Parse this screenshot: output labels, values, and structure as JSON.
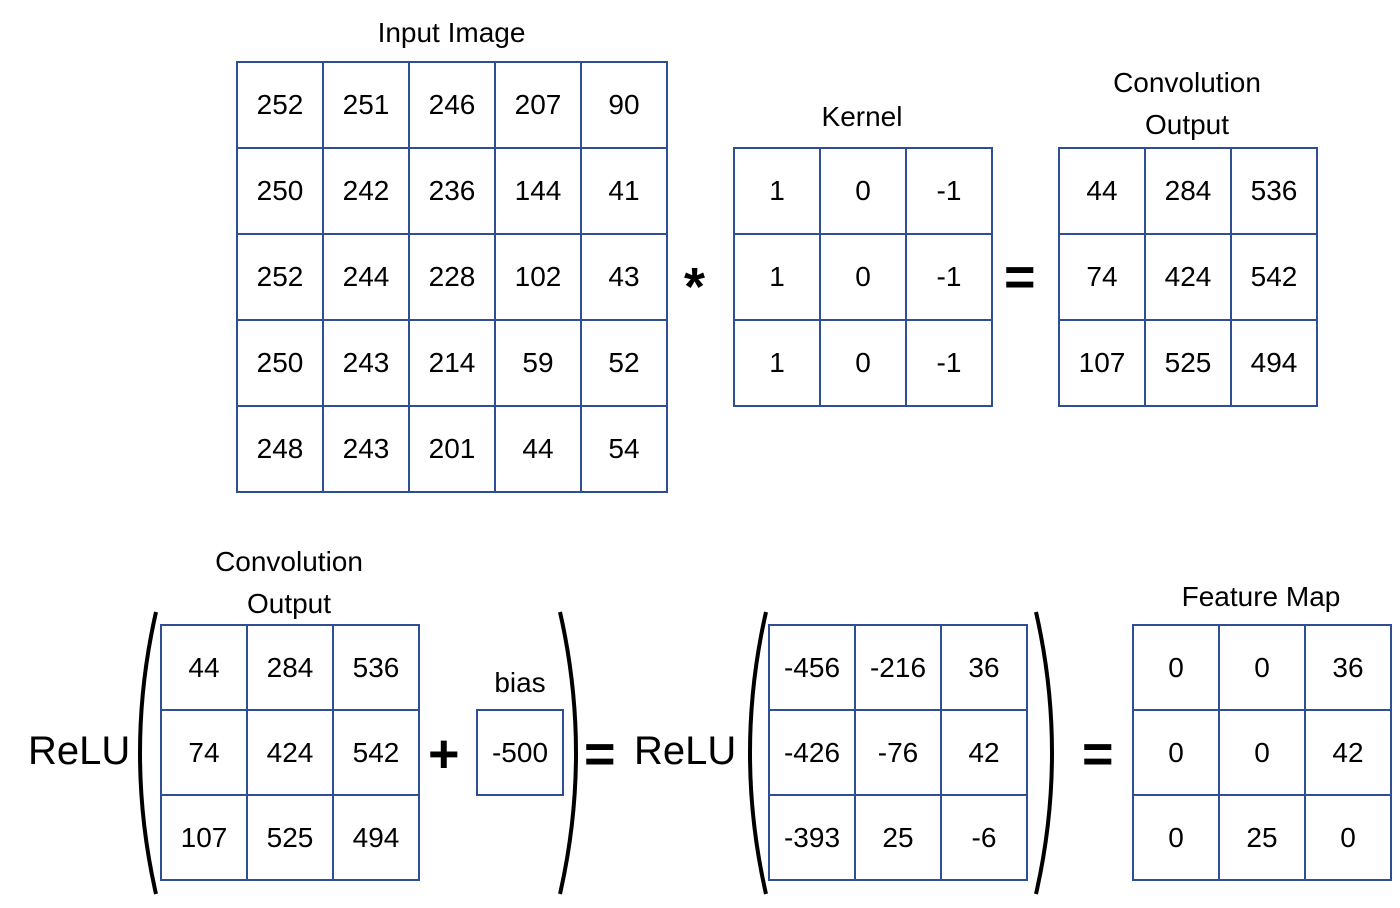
{
  "input_image": {
    "title": "Input Image",
    "rows": [
      [
        "252",
        "251",
        "246",
        "207",
        "90"
      ],
      [
        "250",
        "242",
        "236",
        "144",
        "41"
      ],
      [
        "252",
        "244",
        "228",
        "102",
        "43"
      ],
      [
        "250",
        "243",
        "214",
        "59",
        "52"
      ],
      [
        "248",
        "243",
        "201",
        "44",
        "54"
      ]
    ]
  },
  "operators": {
    "convolve": "*",
    "equals": "=",
    "plus": "+"
  },
  "kernel": {
    "title": "Kernel",
    "rows": [
      [
        "1",
        "0",
        "-1"
      ],
      [
        "1",
        "0",
        "-1"
      ],
      [
        "1",
        "0",
        "-1"
      ]
    ]
  },
  "conv_output_top": {
    "title_line1": "Convolution",
    "title_line2": "Output",
    "rows": [
      [
        "44",
        "284",
        "536"
      ],
      [
        "74",
        "424",
        "542"
      ],
      [
        "107",
        "525",
        "494"
      ]
    ]
  },
  "relu_label": "ReLU",
  "conv_output_bottom": {
    "title_line1": "Convolution",
    "title_line2": "Output",
    "rows": [
      [
        "44",
        "284",
        "536"
      ],
      [
        "74",
        "424",
        "542"
      ],
      [
        "107",
        "525",
        "494"
      ]
    ]
  },
  "bias": {
    "title": "bias",
    "value": "-500"
  },
  "sum_matrix": {
    "rows": [
      [
        "-456",
        "-216",
        "36"
      ],
      [
        "-426",
        "-76",
        "42"
      ],
      [
        "-393",
        "25",
        "-6"
      ]
    ]
  },
  "feature_map": {
    "title": "Feature Map",
    "rows": [
      [
        "0",
        "0",
        "36"
      ],
      [
        "0",
        "0",
        "42"
      ],
      [
        "0",
        "25",
        "0"
      ]
    ]
  },
  "colors": {
    "grid_border": "#2f4f94",
    "text": "#000000",
    "background": "#ffffff"
  }
}
